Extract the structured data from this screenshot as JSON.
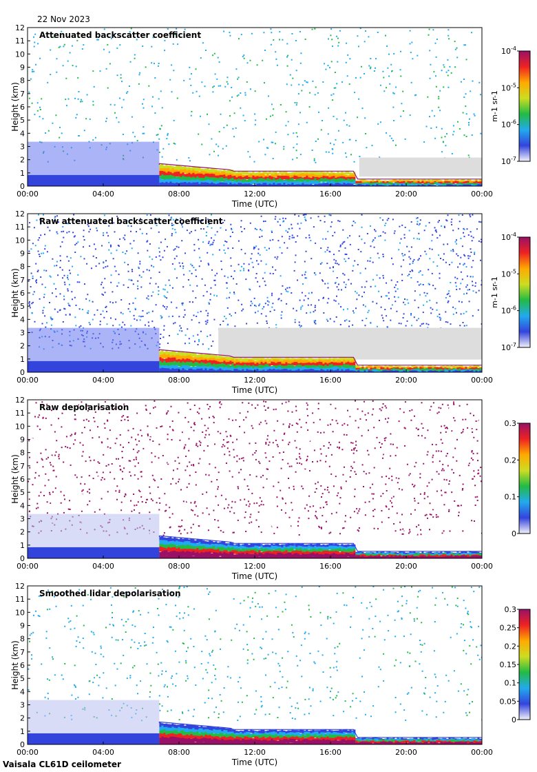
{
  "date": "22 Nov 2023",
  "footer": "Vaisala CL61D ceilometer",
  "colors": {
    "sequence": [
      "#f2f2fa",
      "#3344dd",
      "#22aaee",
      "#22bb44",
      "#ccdd22",
      "#ffaa00",
      "#ee2222",
      "#991166"
    ],
    "no_signal": "#dddddd"
  },
  "chart_data": [
    {
      "type": "heatmap",
      "title": "Attenuated backscatter coefficient",
      "xlabel": "Time (UTC)",
      "ylabel": "Height (km)",
      "xlim": [
        "00:00",
        "00:00"
      ],
      "xticks": [
        "00:00",
        "04:00",
        "08:00",
        "12:00",
        "16:00",
        "20:00",
        "00:00"
      ],
      "ylim": [
        0,
        12
      ],
      "yticks": [
        "0",
        "1",
        "2",
        "3",
        "4",
        "5",
        "6",
        "7",
        "8",
        "9",
        "10",
        "11",
        "12"
      ],
      "colorbar": {
        "label": "m-1 sr-1",
        "scale": "log",
        "range": [
          1e-07,
          0.0001
        ],
        "ticks": [
          {
            "base": "10",
            "exp": "-7",
            "value": 1e-07
          },
          {
            "base": "10",
            "exp": "-6",
            "value": 1e-06
          },
          {
            "base": "10",
            "exp": "-5",
            "value": 1e-05
          },
          {
            "base": "10",
            "exp": "-4",
            "value": 0.0001
          }
        ]
      }
    },
    {
      "type": "heatmap",
      "title": "Raw attenuated backscatter coefficient",
      "xlabel": "Time (UTC)",
      "ylabel": "Height (km)",
      "xlim": [
        "00:00",
        "00:00"
      ],
      "xticks": [
        "00:00",
        "04:00",
        "08:00",
        "12:00",
        "16:00",
        "20:00",
        "00:00"
      ],
      "ylim": [
        0,
        12
      ],
      "yticks": [
        "0",
        "1",
        "2",
        "3",
        "4",
        "5",
        "6",
        "7",
        "8",
        "9",
        "10",
        "11",
        "12"
      ],
      "colorbar": {
        "label": "m-1 sr-1",
        "scale": "log",
        "range": [
          1e-07,
          0.0001
        ],
        "ticks": [
          {
            "base": "10",
            "exp": "-7",
            "value": 1e-07
          },
          {
            "base": "10",
            "exp": "-6",
            "value": 1e-06
          },
          {
            "base": "10",
            "exp": "-5",
            "value": 1e-05
          },
          {
            "base": "10",
            "exp": "-4",
            "value": 0.0001
          }
        ]
      }
    },
    {
      "type": "heatmap",
      "title": "Raw depolarisation",
      "xlabel": "Time (UTC)",
      "ylabel": "Height (km)",
      "xlim": [
        "00:00",
        "00:00"
      ],
      "xticks": [
        "00:00",
        "04:00",
        "08:00",
        "12:00",
        "16:00",
        "20:00",
        "00:00"
      ],
      "ylim": [
        0,
        12
      ],
      "yticks": [
        "0",
        "1",
        "2",
        "3",
        "4",
        "5",
        "6",
        "7",
        "8",
        "9",
        "10",
        "11",
        "12"
      ],
      "colorbar": {
        "label": "",
        "scale": "linear",
        "range": [
          0,
          0.3
        ],
        "ticks": [
          {
            "text": "0",
            "value": 0
          },
          {
            "text": "0.1",
            "value": 0.1
          },
          {
            "text": "0.2",
            "value": 0.2
          },
          {
            "text": "0.3",
            "value": 0.3
          }
        ]
      }
    },
    {
      "type": "heatmap",
      "title": "Smoothed lidar depolarisation",
      "xlabel": "Time (UTC)",
      "ylabel": "Height (km)",
      "xlim": [
        "00:00",
        "00:00"
      ],
      "xticks": [
        "00:00",
        "04:00",
        "08:00",
        "12:00",
        "16:00",
        "20:00",
        "00:00"
      ],
      "ylim": [
        0,
        12
      ],
      "yticks": [
        "0",
        "1",
        "2",
        "3",
        "4",
        "5",
        "6",
        "7",
        "8",
        "9",
        "10",
        "11",
        "12"
      ],
      "colorbar": {
        "label": "",
        "scale": "linear",
        "range": [
          0,
          0.3
        ],
        "ticks": [
          {
            "text": "0",
            "value": 0
          },
          {
            "text": "0.05",
            "value": 0.05
          },
          {
            "text": "0.1",
            "value": 0.1
          },
          {
            "text": "0.15",
            "value": 0.15
          },
          {
            "text": "0.2",
            "value": 0.2
          },
          {
            "text": "0.25",
            "value": 0.25
          },
          {
            "text": "0.3",
            "value": 0.3
          }
        ]
      }
    }
  ]
}
